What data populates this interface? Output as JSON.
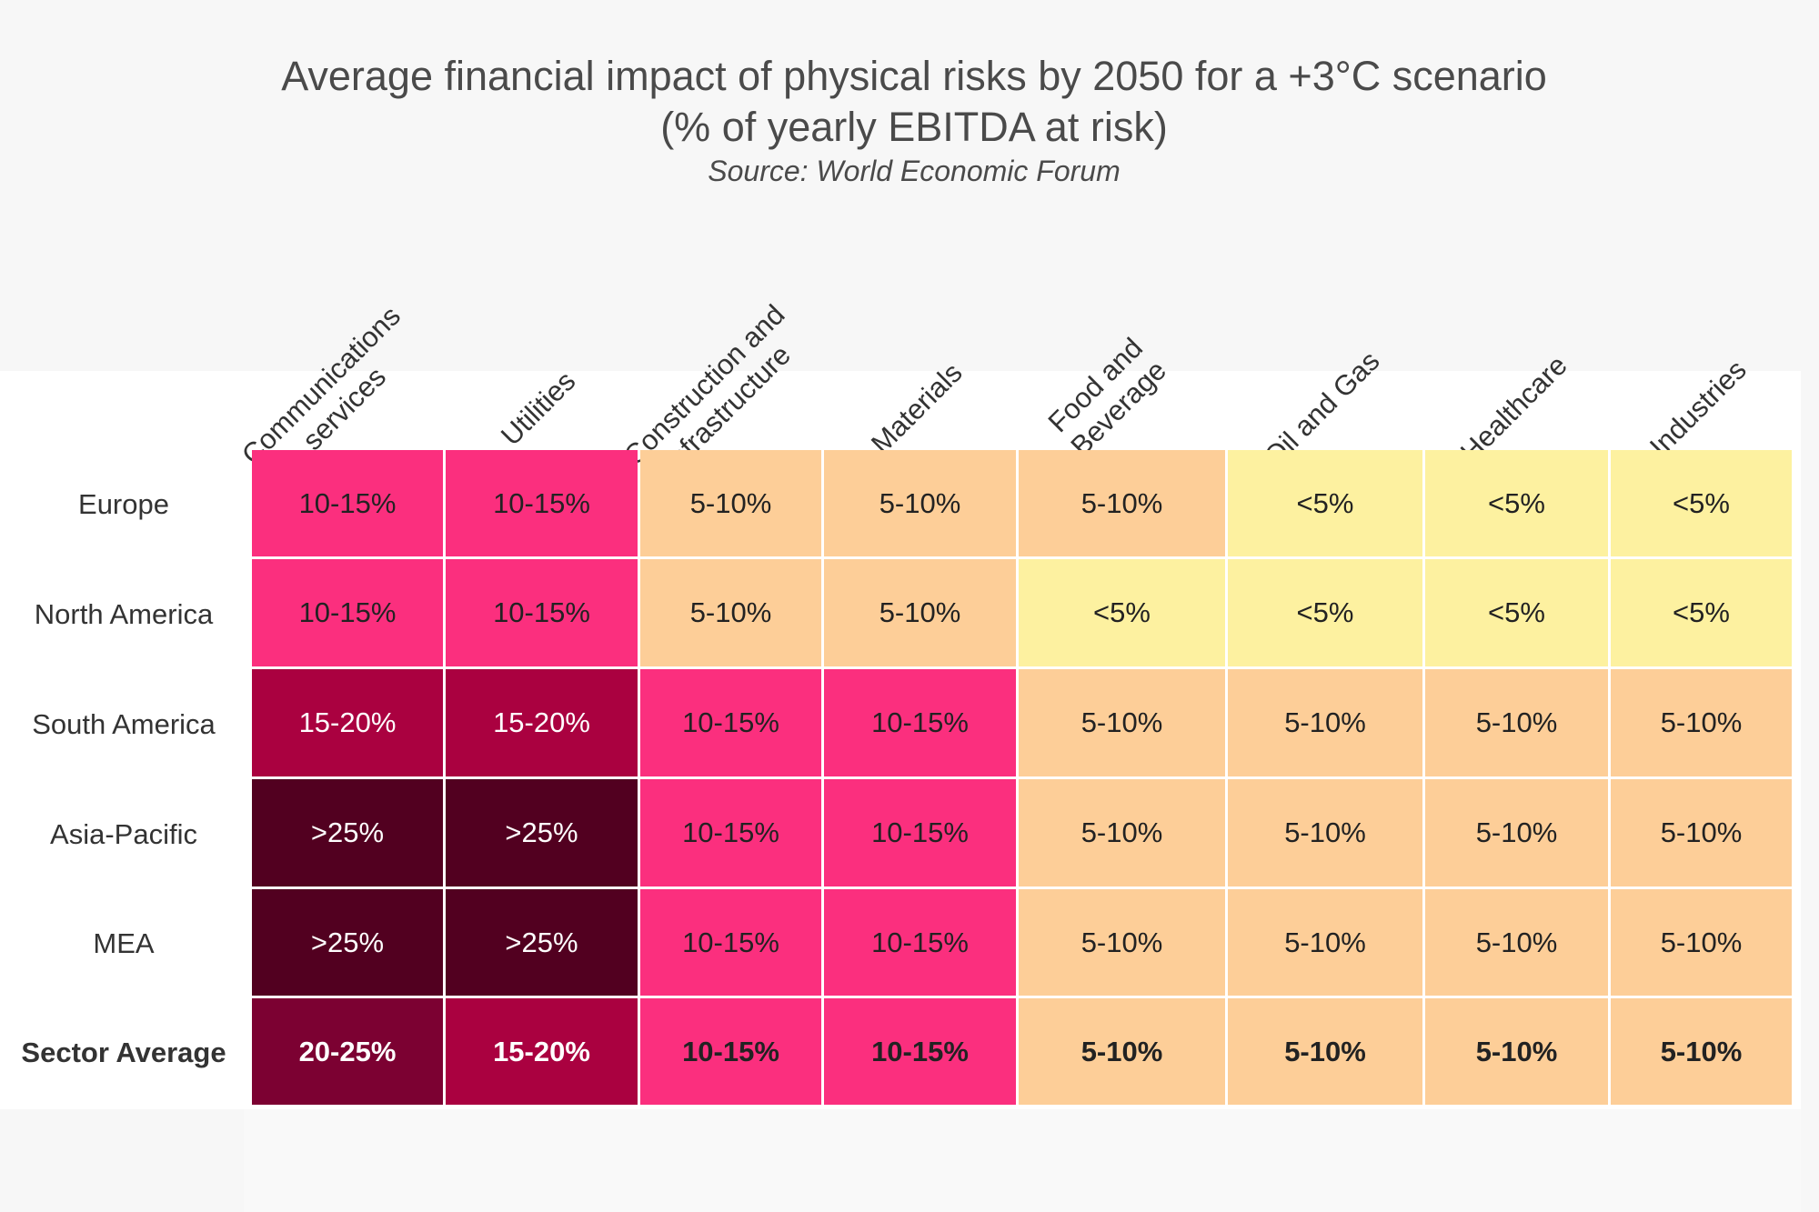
{
  "title_lines": [
    "Average financial impact of physical risks by 2050 for a +3°C scenario",
    "(% of yearly EBITDA at risk)"
  ],
  "subtitle": "Source: World Economic Forum",
  "colors": {
    "<5%": "#fdf1a0",
    "5-10%": "#fdce98",
    "10-15%": "#fb2f7e",
    "15-20%": "#aa0140",
    "20-25%": "#7c0132",
    ">25%": "#520020"
  },
  "chart_data": {
    "type": "heatmap",
    "title": "Average financial impact of physical risks by 2050 for a +3°C scenario (% of yearly EBITDA at risk)",
    "subtitle": "Source: World Economic Forum",
    "columns": [
      "Communications services",
      "Utilities",
      "Construction and infrastructure",
      "Materials",
      "Food and Beverage",
      "Oil and Gas",
      "Healthcare",
      "Industries"
    ],
    "column_label_lines": [
      [
        "Communications",
        "services"
      ],
      [
        "Utilities"
      ],
      [
        "Construction and",
        "infrastructure"
      ],
      [
        "Materials"
      ],
      [
        "Food and",
        "Beverage"
      ],
      [
        "Oil and Gas"
      ],
      [
        "Healthcare"
      ],
      [
        "Industries"
      ]
    ],
    "rows": [
      "Europe",
      "North America",
      "South America",
      "Asia-Pacific",
      "MEA",
      "Sector Average"
    ],
    "values": [
      [
        "10-15%",
        "10-15%",
        "5-10%",
        "5-10%",
        "5-10%",
        "<5%",
        "<5%",
        "<5%"
      ],
      [
        "10-15%",
        "10-15%",
        "5-10%",
        "5-10%",
        "<5%",
        "<5%",
        "<5%",
        "<5%"
      ],
      [
        "15-20%",
        "15-20%",
        "10-15%",
        "10-15%",
        "5-10%",
        "5-10%",
        "5-10%",
        "5-10%"
      ],
      [
        ">25%",
        ">25%",
        "10-15%",
        "10-15%",
        "5-10%",
        "5-10%",
        "5-10%",
        "5-10%"
      ],
      [
        ">25%",
        ">25%",
        "10-15%",
        "10-15%",
        "5-10%",
        "5-10%",
        "5-10%",
        "5-10%"
      ],
      [
        "20-25%",
        "15-20%",
        "10-15%",
        "10-15%",
        "5-10%",
        "5-10%",
        "5-10%",
        "5-10%"
      ]
    ]
  }
}
